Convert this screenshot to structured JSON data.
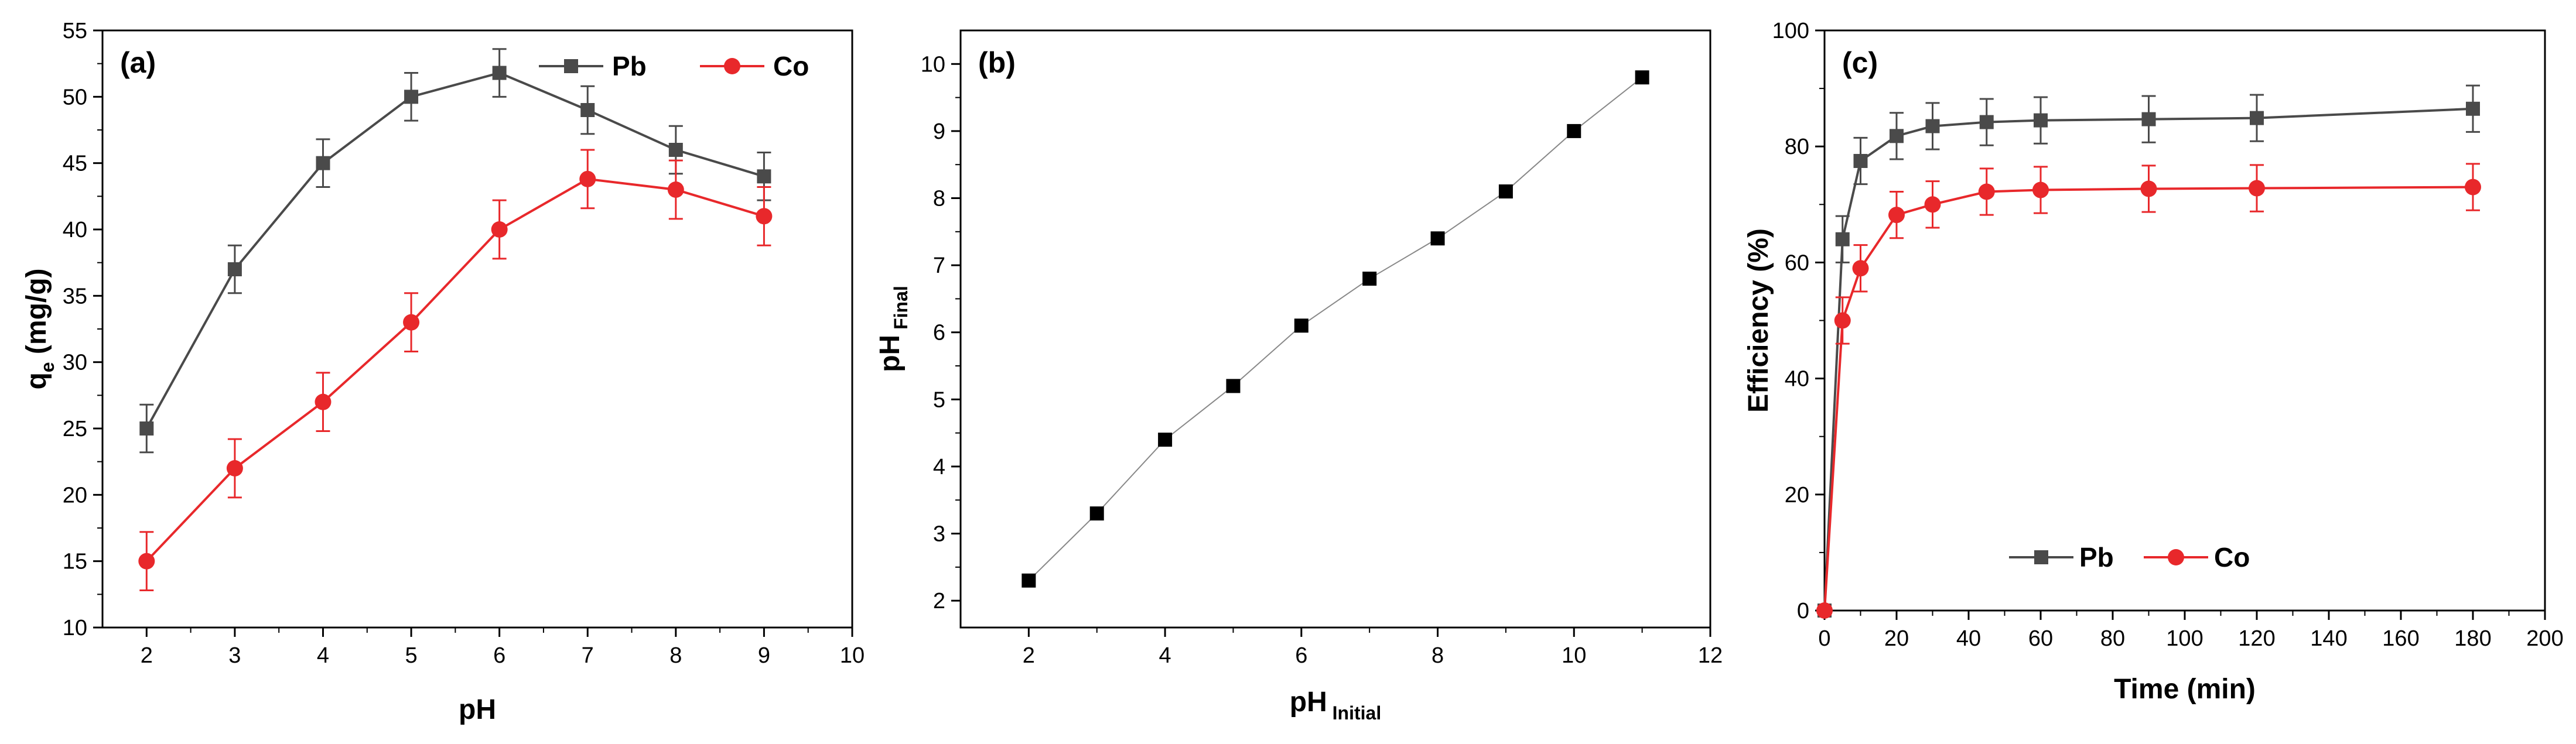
{
  "chart_data": [
    {
      "type": "line",
      "panel_label": "(a)",
      "xlabel": "pH",
      "ylabel_main": "q",
      "ylabel_sub": "e",
      "ylabel_rest": "  (mg/g)",
      "xlim": [
        1.5,
        10
      ],
      "ylim": [
        10,
        55
      ],
      "xticks": [
        2,
        3,
        4,
        5,
        6,
        7,
        8,
        9,
        10
      ],
      "yticks": [
        10,
        15,
        20,
        25,
        30,
        35,
        40,
        45,
        50,
        55
      ],
      "legend_position": "top-right",
      "legend_layout": "horizontal",
      "series": [
        {
          "name": "Pb",
          "color": "#4a4a4a",
          "marker": "square",
          "x": [
            2,
            3,
            4,
            5,
            6,
            7,
            8,
            9
          ],
          "y": [
            25,
            37,
            45,
            50,
            51.8,
            49,
            46,
            44
          ],
          "err": [
            1.8,
            1.8,
            1.8,
            1.8,
            1.8,
            1.8,
            1.8,
            1.8
          ]
        },
        {
          "name": "Co",
          "color": "#e8282b",
          "marker": "circle",
          "x": [
            2,
            3,
            4,
            5,
            6,
            7,
            8,
            9
          ],
          "y": [
            15,
            22,
            27,
            33,
            40,
            43.8,
            43,
            41
          ],
          "err": [
            2.2,
            2.2,
            2.2,
            2.2,
            2.2,
            2.2,
            2.2,
            2.2
          ]
        }
      ]
    },
    {
      "type": "line",
      "panel_label": "(b)",
      "xlabel_main": "pH",
      "xlabel_sub": " Initial",
      "ylabel_main": "pH",
      "ylabel_sub": " Final",
      "xlim": [
        1,
        12
      ],
      "ylim": [
        1.6,
        10.5
      ],
      "xticks": [
        2,
        4,
        6,
        8,
        10,
        12
      ],
      "yticks": [
        2,
        3,
        4,
        5,
        6,
        7,
        8,
        9,
        10
      ],
      "series": [
        {
          "color": "#000000",
          "line_color": "#888888",
          "marker": "square",
          "x": [
            2,
            3,
            4,
            5,
            6,
            7,
            8,
            9,
            10,
            11
          ],
          "y": [
            2.3,
            3.3,
            4.4,
            5.2,
            6.1,
            6.8,
            7.4,
            8.1,
            9.0,
            9.8
          ]
        }
      ]
    },
    {
      "type": "line",
      "panel_label": "(c)",
      "xlabel": "Time (min)",
      "ylabel": "Efficiency (%)",
      "xlim": [
        0,
        200
      ],
      "ylim": [
        0,
        100
      ],
      "xticks": [
        0,
        20,
        40,
        60,
        80,
        100,
        120,
        140,
        160,
        180,
        200
      ],
      "yticks": [
        0,
        20,
        40,
        60,
        80,
        100
      ],
      "legend_position": "bottom-left",
      "legend_layout": "horizontal",
      "series": [
        {
          "name": "Pb",
          "color": "#4a4a4a",
          "marker": "square",
          "x": [
            0,
            5,
            10,
            20,
            30,
            45,
            60,
            90,
            120,
            180
          ],
          "y": [
            0,
            64,
            77.5,
            81.8,
            83.5,
            84.2,
            84.5,
            84.7,
            84.9,
            86.5
          ],
          "err": [
            0,
            4,
            4,
            4,
            4,
            4,
            4,
            4,
            4,
            4
          ]
        },
        {
          "name": "Co",
          "color": "#e8282b",
          "marker": "circle",
          "x": [
            0,
            5,
            10,
            20,
            30,
            45,
            60,
            90,
            120,
            180
          ],
          "y": [
            0,
            50,
            59,
            68.2,
            70,
            72.2,
            72.5,
            72.7,
            72.8,
            73
          ],
          "err": [
            0,
            4,
            4,
            4,
            4,
            4,
            4,
            4,
            4,
            4
          ]
        }
      ]
    }
  ]
}
